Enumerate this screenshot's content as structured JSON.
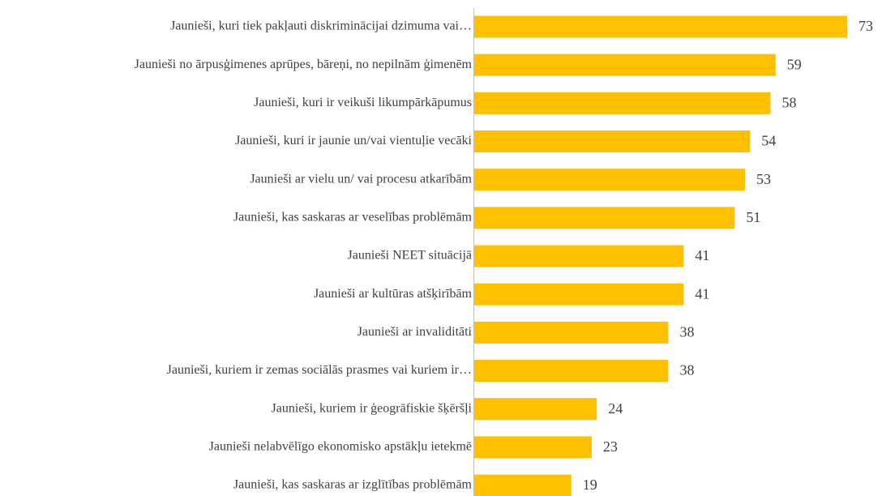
{
  "chart_data": {
    "type": "bar",
    "orientation": "horizontal",
    "color": "#ffc000",
    "categories": [
      "Jaunieši, kuri tiek pakļauti diskriminācijai dzimuma vai…",
      "Jaunieši no ārpusģimenes aprūpes, bāreņi, no nepilnām ģimenēm",
      "Jaunieši, kuri ir veikuši likumpārkāpumus",
      "Jaunieši, kuri ir jaunie un/vai vientuļie vecāki",
      "Jaunieši ar vielu un/ vai procesu atkarībām",
      "Jaunieši, kas saskaras ar veselības problēmām",
      "Jaunieši NEET situācijā",
      "Jaunieši ar kultūras atšķirībām",
      "Jaunieši ar invaliditāti",
      "Jaunieši, kuriem ir zemas sociālās prasmes vai kuriem ir…",
      "Jaunieši, kuriem ir ģeogrāfiskie šķēršļi",
      "Jaunieši nelabvēlīgo ekonomisko apstākļu ietekmē",
      "Jaunieši, kas saskaras ar izglītības problēmām"
    ],
    "values": [
      73,
      59,
      58,
      54,
      53,
      51,
      41,
      41,
      38,
      38,
      24,
      23,
      19
    ]
  }
}
